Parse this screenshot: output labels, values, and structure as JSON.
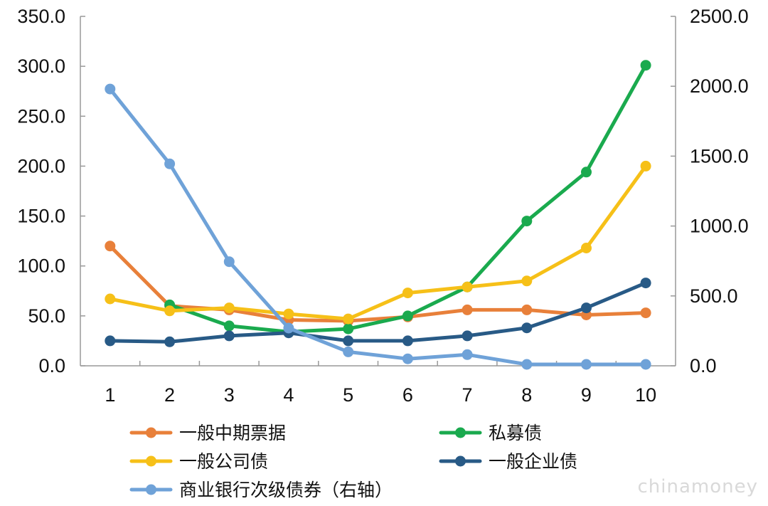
{
  "chart_data": {
    "type": "line",
    "title": "",
    "xlabel": "",
    "ylabel": "",
    "categories": [
      "1",
      "2",
      "3",
      "4",
      "5",
      "6",
      "7",
      "8",
      "9",
      "10"
    ],
    "y_left": {
      "ylim": [
        0,
        350
      ],
      "ticks": [
        "0.0",
        "50.0",
        "100.0",
        "150.0",
        "200.0",
        "250.0",
        "300.0",
        "350.0"
      ]
    },
    "y_right": {
      "ylim": [
        0,
        2500
      ],
      "ticks": [
        "0.0",
        "500.0",
        "1000.0",
        "1500.0",
        "2000.0",
        "2500.0"
      ]
    },
    "grid": false,
    "legend_position": "bottom",
    "series": [
      {
        "name": "一般中期票据",
        "axis": "left",
        "color": "#E8803A",
        "values": [
          120,
          60,
          56,
          46,
          45,
          49,
          56,
          56,
          51,
          53
        ]
      },
      {
        "name": "私募债",
        "axis": "left",
        "color": "#1AAA4E",
        "values": [
          null,
          61,
          40,
          34,
          37,
          50,
          79,
          145,
          194,
          301
        ]
      },
      {
        "name": "一般公司债",
        "axis": "left",
        "color": "#F6C018",
        "values": [
          67,
          55,
          58,
          52,
          47,
          73,
          79,
          85,
          118,
          200
        ]
      },
      {
        "name": "一般企业债",
        "axis": "left",
        "color": "#285A86",
        "values": [
          25,
          24,
          30,
          33,
          25,
          25,
          30,
          38,
          58,
          83
        ]
      },
      {
        "name": "商业银行次级债券（右轴）",
        "axis": "right",
        "color": "#6FA2D8",
        "values": [
          1980,
          1445,
          745,
          270,
          100,
          50,
          80,
          10,
          10,
          10
        ]
      }
    ]
  },
  "watermark": "chinamoney"
}
